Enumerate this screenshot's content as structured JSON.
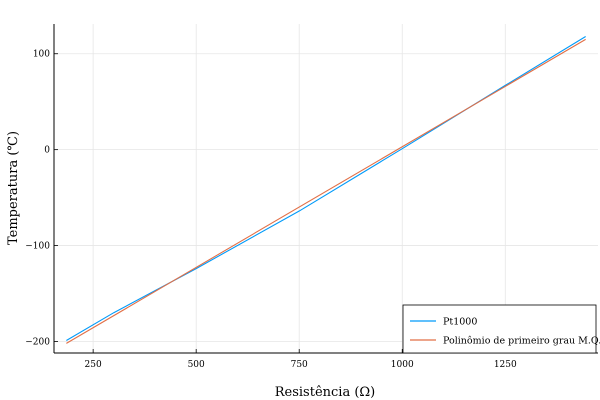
{
  "chart_data": {
    "type": "line",
    "title": "",
    "xlabel": "Resistência (Ω)",
    "ylabel": "Temperatura (℃)",
    "xlim": [
      155,
      1475
    ],
    "ylim": [
      -212,
      131
    ],
    "xticks": [
      250,
      500,
      750,
      1000,
      1250
    ],
    "yticks": [
      100,
      0,
      -100,
      -200
    ],
    "xtick_labels": [
      "250",
      "500",
      "750",
      "1000",
      "1250"
    ],
    "ytick_labels": [
      "100",
      "0",
      "−100",
      "−200"
    ],
    "grid": true,
    "legend_position": "bottom-right",
    "series": [
      {
        "name": "Pt1000",
        "color": "#009af9",
        "x": [
          185,
          300,
          500,
          750,
          1000,
          1250,
          1445
        ],
        "y": [
          -199,
          -170,
          -124,
          -64,
          1,
          67,
          118
        ]
      },
      {
        "name": "Polinômio de primeiro grau M.Q.",
        "color": "#e26f46",
        "x": [
          185,
          1445
        ],
        "y": [
          -202,
          115
        ]
      }
    ]
  }
}
